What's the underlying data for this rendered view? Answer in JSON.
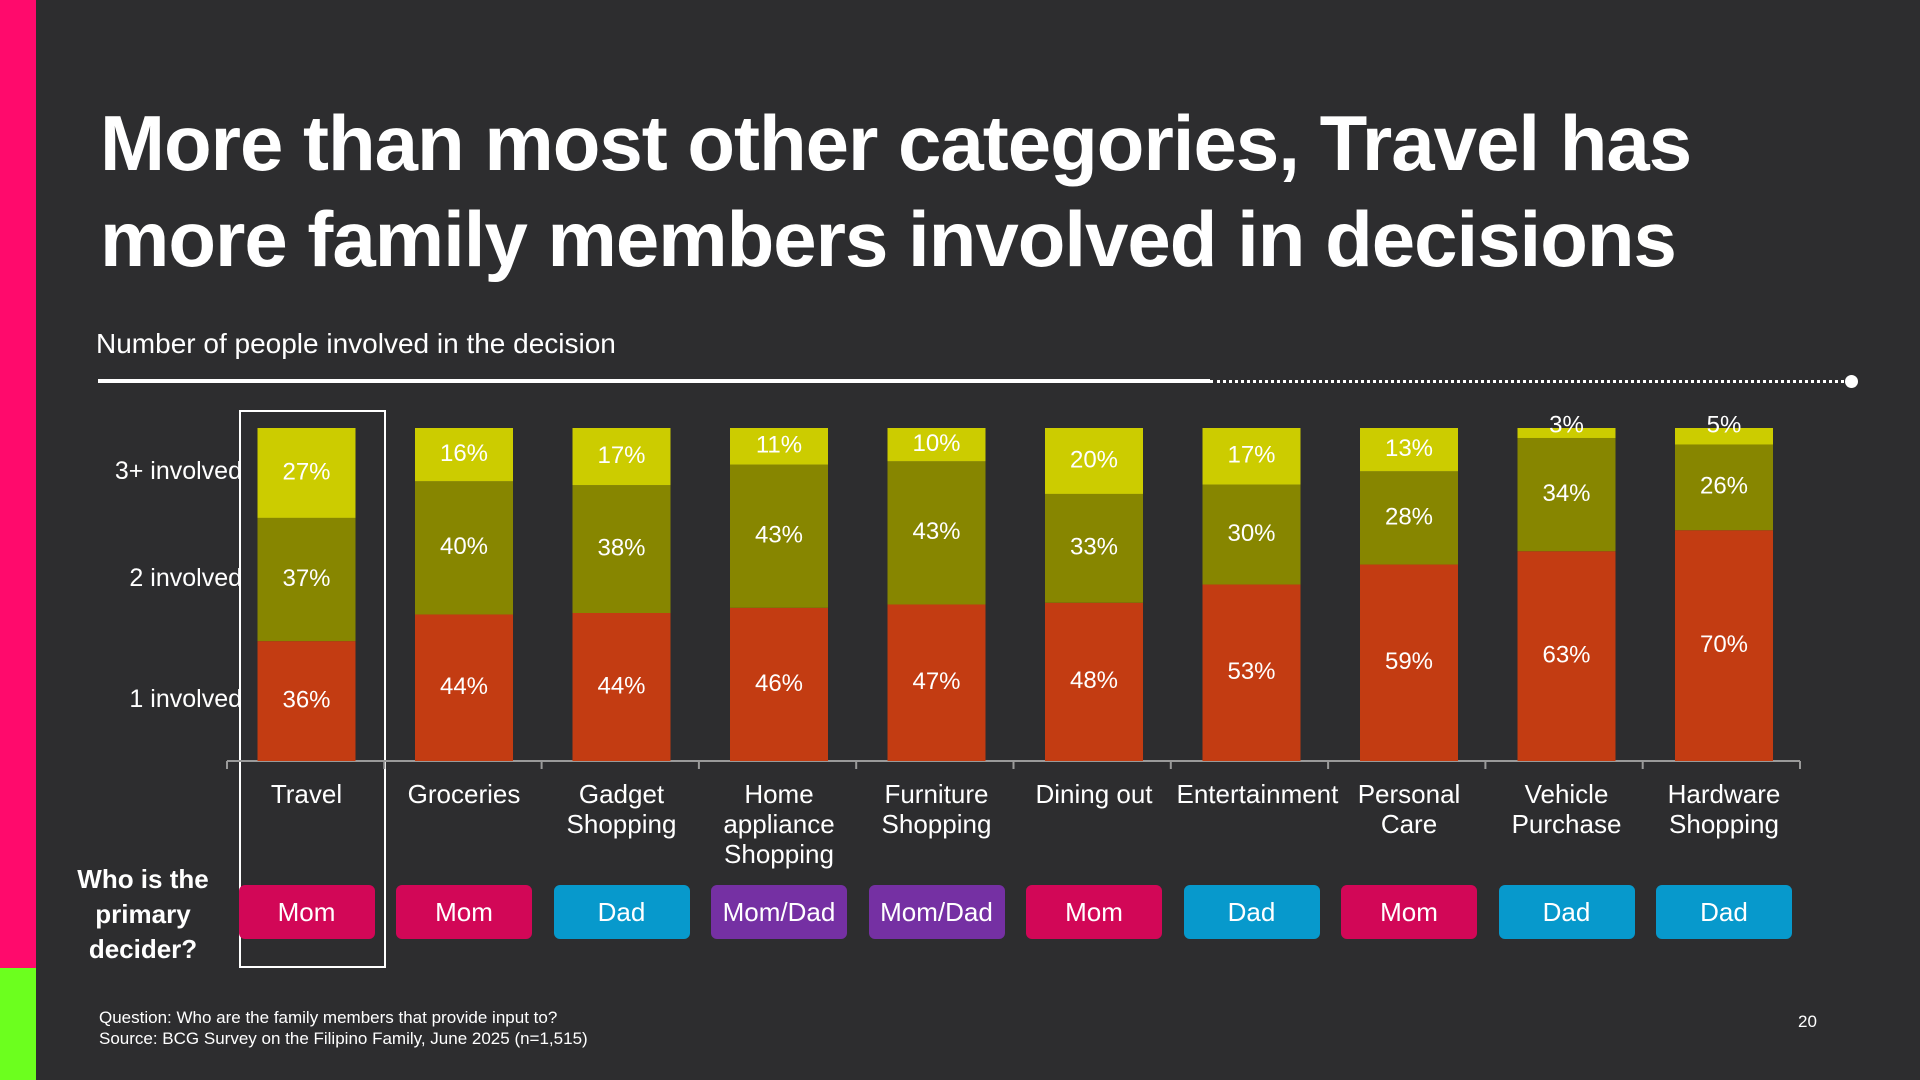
{
  "slide": {
    "title": "More than most other categories, Travel has more family members involved in decisions",
    "subtitle": "Number of people involved in the decision",
    "decider_label": "Who is the primary decider?",
    "footnote_question": "Question: Who are the family members that provide input to?",
    "footnote_source": "Source: BCG Survey on the Filipino Family, June 2025 (n=1,515)",
    "page_number": "20"
  },
  "colors": {
    "one_involved": "#c33c12",
    "two_involved": "#878600",
    "three_plus_involved": "#cccc00",
    "mom": "#d20757",
    "dad": "#0799cc",
    "mom_dad": "#7530a3"
  },
  "chart_data": {
    "type": "bar",
    "stacked": true,
    "percent_stacked": true,
    "categories": [
      "Travel",
      "Groceries",
      "Gadget Shopping",
      "Home appliance Shopping",
      "Furniture Shopping",
      "Dining out",
      "Entertainment",
      "Personal Care",
      "Vehicle Purchase",
      "Hardware Shopping"
    ],
    "series": [
      {
        "name": "1 involved",
        "values": [
          36,
          44,
          44,
          46,
          47,
          48,
          53,
          59,
          63,
          70
        ]
      },
      {
        "name": "2 involved",
        "values": [
          37,
          40,
          38,
          43,
          43,
          33,
          30,
          28,
          34,
          26
        ]
      },
      {
        "name": "3+ involved",
        "values": [
          27,
          16,
          17,
          11,
          10,
          20,
          17,
          13,
          3,
          5
        ]
      }
    ],
    "ylim": [
      0,
      100
    ],
    "highlighted_category": "Travel",
    "primary_decider": [
      "Mom",
      "Mom",
      "Dad",
      "Mom/Dad",
      "Mom/Dad",
      "Mom",
      "Dad",
      "Mom",
      "Dad",
      "Dad"
    ]
  }
}
